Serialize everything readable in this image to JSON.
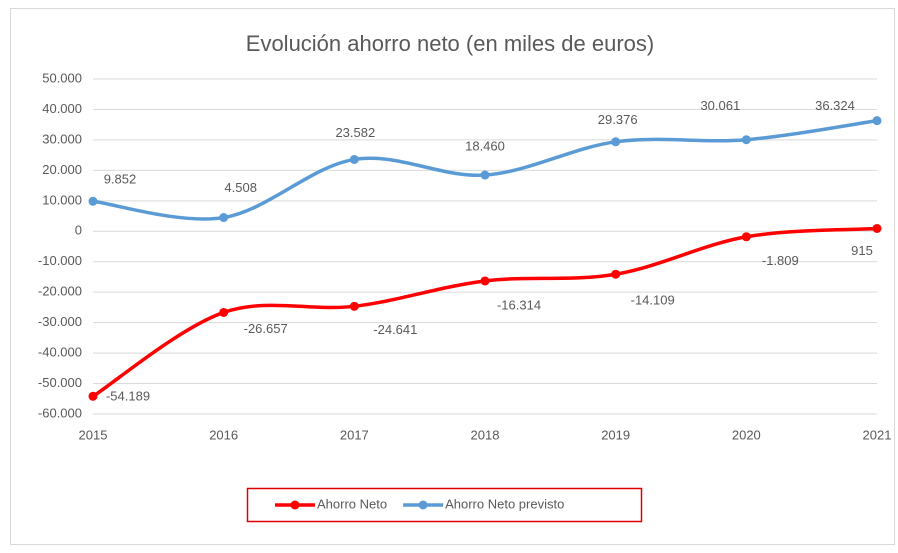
{
  "chart_data": {
    "type": "line",
    "title": "Evolución ahorro neto (en miles de euros)",
    "categories": [
      "2015",
      "2016",
      "2017",
      "2018",
      "2019",
      "2020",
      "2021"
    ],
    "series": [
      {
        "name": "Ahorro Neto",
        "color": "#ff0000",
        "values": [
          -54189,
          -26657,
          -24641,
          -16314,
          -14109,
          -1809,
          915
        ],
        "value_labels": [
          "-54.189",
          "-26.657",
          "-24.641",
          "-16.314",
          "-14.109",
          "-1.809",
          "915"
        ]
      },
      {
        "name": "Ahorro Neto previsto",
        "color": "#5b9bd5",
        "values": [
          9852,
          4508,
          23582,
          18460,
          29376,
          30061,
          36324
        ],
        "value_labels": [
          "9.852",
          "4.508",
          "23.582",
          "18.460",
          "29.376",
          "30.061",
          "36.324"
        ]
      }
    ],
    "ylim": [
      -60000,
      50000
    ],
    "yticks": [
      {
        "value": -60000,
        "label": "-60.000"
      },
      {
        "value": -50000,
        "label": "-50.000"
      },
      {
        "value": -40000,
        "label": "-40.000"
      },
      {
        "value": -30000,
        "label": "-30.000"
      },
      {
        "value": -20000,
        "label": "-20.000"
      },
      {
        "value": -10000,
        "label": "-10.000"
      },
      0,
      {
        "value": 10000,
        "label": "10.000"
      },
      {
        "value": 20000,
        "label": "20.000"
      },
      {
        "value": 30000,
        "label": "30.000"
      },
      {
        "value": 40000,
        "label": "40.000"
      },
      {
        "value": 50000,
        "label": "50.000"
      }
    ],
    "grid": true,
    "smooth": true,
    "legend": "bottom"
  }
}
